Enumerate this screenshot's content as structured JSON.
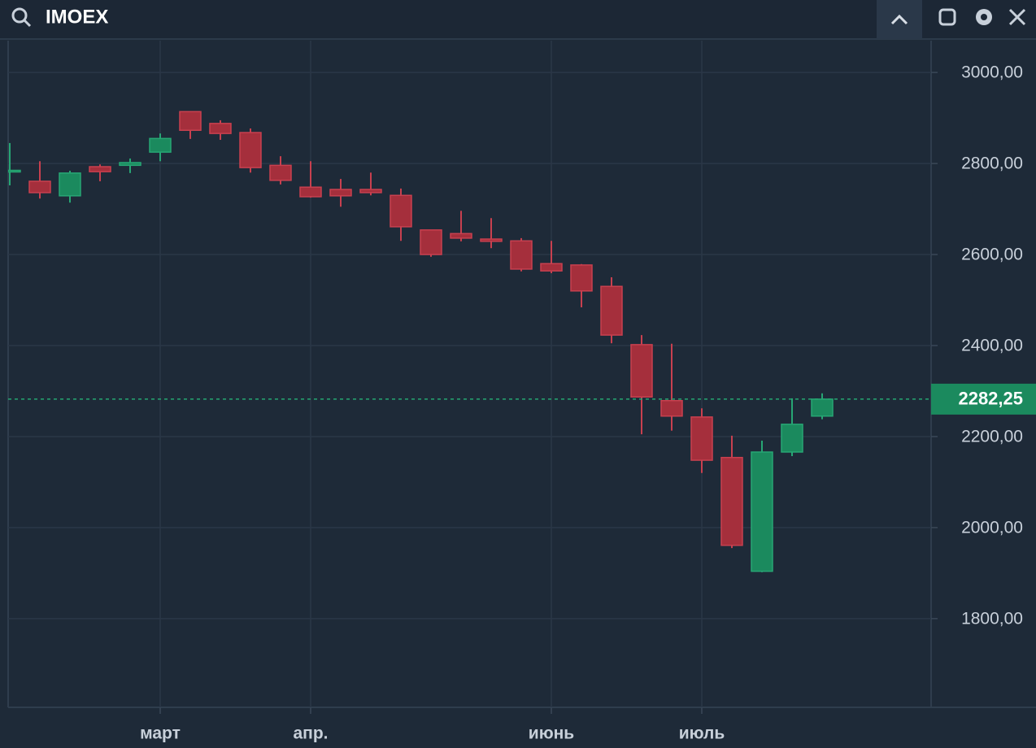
{
  "chart_data": {
    "type": "candlestick",
    "title": "IMOEX",
    "categories": [
      null,
      null,
      null,
      null,
      null,
      "март",
      null,
      null,
      null,
      null,
      "апр.",
      null,
      null,
      null,
      null,
      null,
      null,
      null,
      "июнь",
      null,
      null,
      null,
      null,
      "июль",
      null,
      null,
      null,
      null
    ],
    "open": [
      2783,
      2761,
      2729,
      2793,
      2796,
      2825,
      2914,
      2888,
      2868,
      2796,
      2748,
      2743,
      2743,
      2730,
      2654,
      2646,
      2634,
      2630,
      2580,
      2577,
      2530,
      2402,
      2279,
      2243,
      2154,
      1904,
      2166,
      2245
    ],
    "high": [
      2845,
      2805,
      2784,
      2798,
      2811,
      2866,
      2914,
      2895,
      2877,
      2816,
      2805,
      2766,
      2780,
      2745,
      2654,
      2696,
      2680,
      2636,
      2630,
      2579,
      2550,
      2423,
      2404,
      2262,
      2202,
      2191,
      2284,
      2295
    ],
    "low": [
      2752,
      2723,
      2714,
      2761,
      2779,
      2805,
      2854,
      2852,
      2780,
      2754,
      2725,
      2705,
      2730,
      2630,
      2595,
      2629,
      2614,
      2563,
      2559,
      2484,
      2405,
      2205,
      2213,
      2120,
      1955,
      1902,
      2157,
      2238
    ],
    "close": [
      2785,
      2736,
      2779,
      2782,
      2802,
      2855,
      2873,
      2866,
      2791,
      2763,
      2727,
      2729,
      2736,
      2661,
      2600,
      2636,
      2629,
      2568,
      2564,
      2520,
      2423,
      2287,
      2245,
      2148,
      1961,
      2166,
      2227,
      2282.25
    ],
    "up_color": "#1b8a5e",
    "down_color": "#a52f3c",
    "ylim": [
      1605,
      3061
    ],
    "yticks": [
      {
        "value": 1800,
        "label": "1800,00"
      },
      {
        "value": 2000,
        "label": "2000,00"
      },
      {
        "value": 2200,
        "label": "2200,00"
      },
      {
        "value": 2400,
        "label": "2400,00"
      },
      {
        "value": 2600,
        "label": "2600,00"
      },
      {
        "value": 2800,
        "label": "2800,00"
      },
      {
        "value": 3000,
        "label": "3000,00"
      }
    ],
    "last_price": {
      "value": 2282.25,
      "label": "2282,25"
    },
    "grid": true
  }
}
